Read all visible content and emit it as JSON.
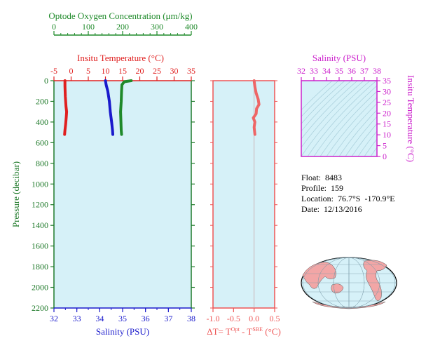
{
  "colors": {
    "panel_bg": "#d6f1f8",
    "oxygen": "#1f8a2a",
    "temperature": "#e02020",
    "salinity": "#1a1acc",
    "ts_axis": "#cc22cc",
    "axis_dark": "#1f7a2a"
  },
  "info": {
    "float_label": "Float:",
    "float_value": "8483",
    "profile_label": "Profile:",
    "profile_value": "159",
    "location_label": "Location:",
    "location_value": "76.7°S  -170.9°E",
    "date_label": "Date:",
    "date_value": "12/13/2016"
  },
  "chart_data": [
    {
      "type": "line",
      "title": "",
      "ylabel": "Pressure (decibar)",
      "ylim": [
        2200,
        0
      ],
      "y_ticks": [
        "0",
        "200",
        "400",
        "600",
        "800",
        "1000",
        "1200",
        "1400",
        "1600",
        "1800",
        "2000",
        "2200"
      ],
      "axes": {
        "oxygen": {
          "label": "Optode Oxygen Concentration (μm/kg)",
          "range": [
            0,
            400
          ],
          "ticks": [
            "0",
            "100",
            "200",
            "300",
            "400"
          ]
        },
        "temperature": {
          "label": "Insitu Temperature (°C)",
          "range": [
            -5,
            35
          ],
          "ticks": [
            "-5",
            "0",
            "5",
            "10",
            "15",
            "20",
            "25",
            "30",
            "35"
          ]
        },
        "salinity": {
          "label": "Salinity (PSU)",
          "range": [
            32,
            38
          ],
          "ticks": [
            "32",
            "33",
            "34",
            "35",
            "36",
            "37",
            "38"
          ]
        }
      },
      "series": [
        {
          "axis": "oxygen",
          "points": [
            [
              225,
              0
            ],
            [
              205,
              10
            ],
            [
              198,
              40
            ],
            [
              197,
              100
            ],
            [
              196,
              200
            ],
            [
              194,
              300
            ],
            [
              195,
              400
            ],
            [
              196,
              480
            ],
            [
              197,
              520
            ]
          ]
        },
        {
          "axis": "temperature",
          "points": [
            [
              -1.8,
              0
            ],
            [
              -1.8,
              50
            ],
            [
              -1.7,
              150
            ],
            [
              -1.5,
              250
            ],
            [
              -1.3,
              300
            ],
            [
              -1.4,
              350
            ],
            [
              -1.6,
              420
            ],
            [
              -1.8,
              480
            ],
            [
              -1.9,
              520
            ]
          ]
        },
        {
          "axis": "salinity",
          "points": [
            [
              34.25,
              0
            ],
            [
              34.28,
              40
            ],
            [
              34.35,
              100
            ],
            [
              34.42,
              200
            ],
            [
              34.46,
              300
            ],
            [
              34.52,
              400
            ],
            [
              34.56,
              480
            ],
            [
              34.57,
              520
            ]
          ]
        }
      ]
    },
    {
      "type": "line",
      "xlabel": "ΔT= T",
      "xlabel_sup1": "Opt",
      "xlabel_mid": " - T",
      "xlabel_sup2": "SBE",
      "xlabel_end": " (°C)",
      "xlim": [
        -1.0,
        0.5
      ],
      "x_ticks": [
        "-1.0",
        "-0.5",
        "0.0",
        "0.5"
      ],
      "ylim": [
        2200,
        0
      ],
      "series": [
        {
          "points": [
            [
              0.0,
              0
            ],
            [
              0.02,
              60
            ],
            [
              0.05,
              120
            ],
            [
              0.1,
              180
            ],
            [
              0.12,
              230
            ],
            [
              0.06,
              270
            ],
            [
              0.05,
              320
            ],
            [
              -0.02,
              360
            ],
            [
              0.02,
              400
            ],
            [
              0.0,
              450
            ],
            [
              0.02,
              520
            ]
          ]
        }
      ]
    },
    {
      "type": "scatter",
      "xlabel": "Salinity (PSU)",
      "ylabel": "Insitu Temperature (°C)",
      "xlim": [
        32,
        38
      ],
      "ylim": [
        0,
        35
      ],
      "x_ticks": [
        "32",
        "33",
        "34",
        "35",
        "36",
        "37",
        "38"
      ],
      "y_ticks": [
        "0",
        "5",
        "10",
        "15",
        "20",
        "25",
        "30",
        "35"
      ]
    }
  ]
}
